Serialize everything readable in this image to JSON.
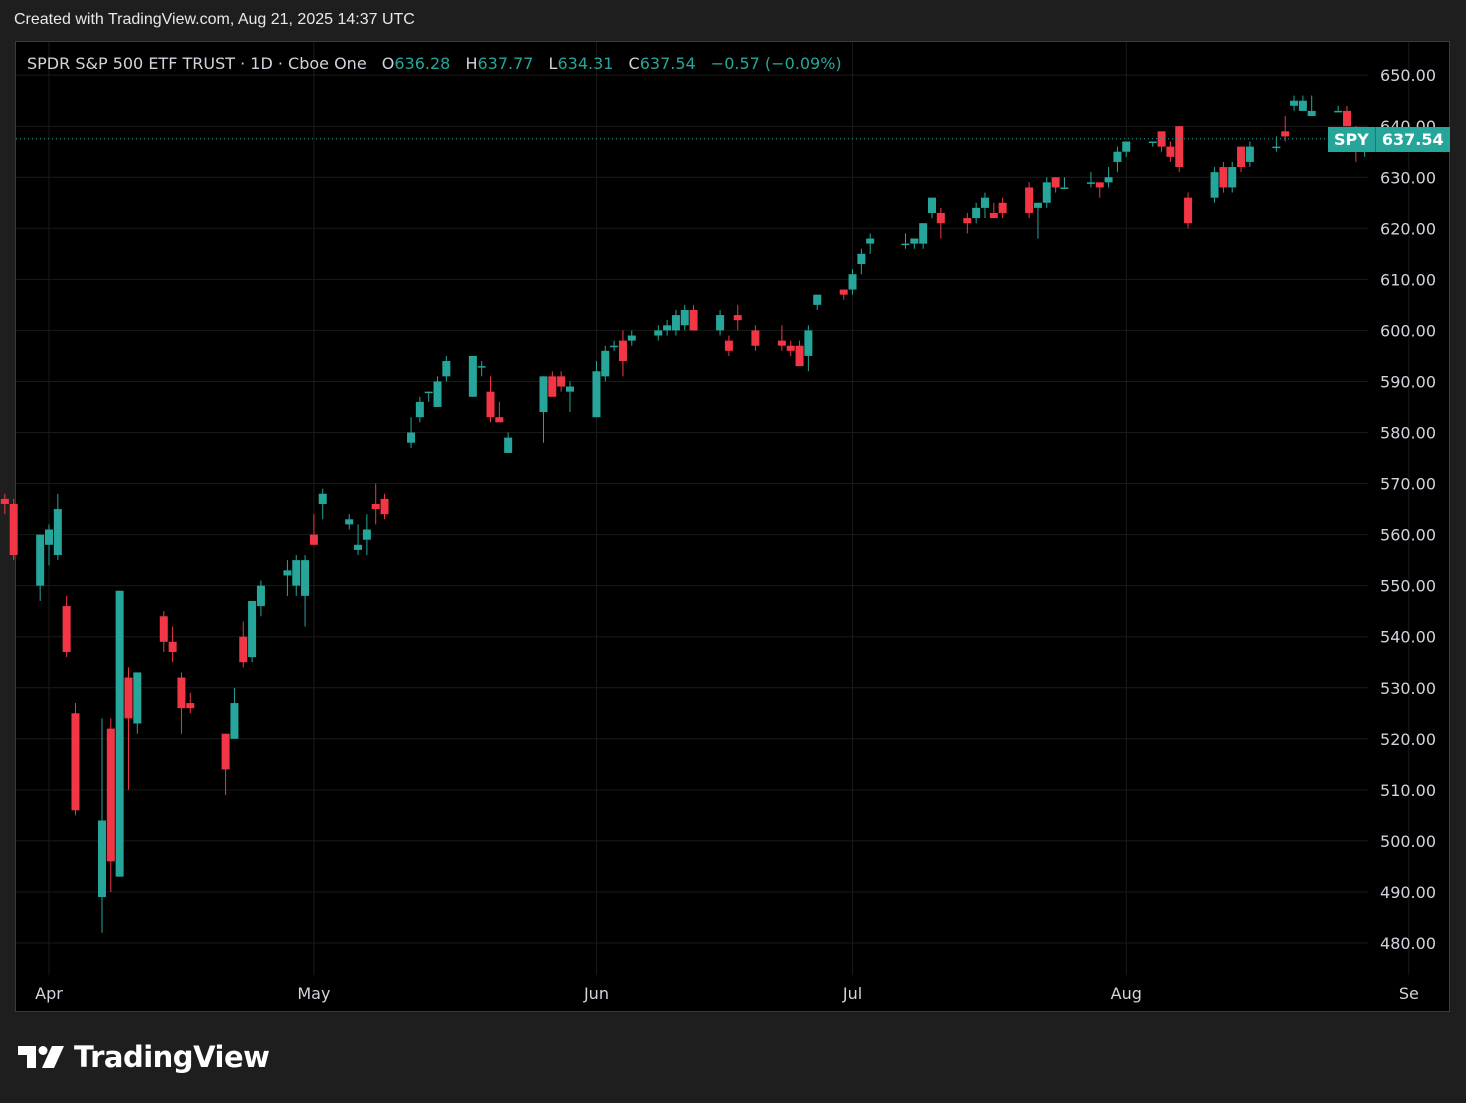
{
  "header": {
    "created_text": "Created with TradingView.com, Aug 21, 2025 14:37 UTC"
  },
  "legend": {
    "title": "SPDR S&P 500 ETF TRUST · 1D · Cboe One",
    "open_label": "O",
    "open": "636.28",
    "high_label": "H",
    "high": "637.77",
    "low_label": "L",
    "low": "634.31",
    "close_label": "C",
    "close": "637.54",
    "change": "−0.57 (−0.09%)"
  },
  "price_tag": {
    "symbol": "SPY",
    "price": "637.54"
  },
  "footer": {
    "brand": "TradingView",
    "logo_icon": "tradingview-logo-icon"
  },
  "colors": {
    "up": "#26a69a",
    "down": "#f23645",
    "background": "#000000",
    "grid": "#1a1a1a"
  },
  "chart_data": {
    "type": "candlestick",
    "series_name": "SPY",
    "ylim": [
      475,
      655
    ],
    "y_ticks": [
      "480.00",
      "490.00",
      "500.00",
      "510.00",
      "520.00",
      "530.00",
      "540.00",
      "550.00",
      "560.00",
      "570.00",
      "580.00",
      "590.00",
      "600.00",
      "610.00",
      "620.00",
      "630.00",
      "640.00",
      "650.00"
    ],
    "x_ticks": [
      {
        "label": "Apr",
        "date": "2025-04-01"
      },
      {
        "label": "May",
        "date": "2025-05-01"
      },
      {
        "label": "Jun",
        "date": "2025-06-02"
      },
      {
        "label": "Jul",
        "date": "2025-07-01"
      },
      {
        "label": "Aug",
        "date": "2025-08-01"
      },
      {
        "label": "Se",
        "date": "2025-09-02"
      }
    ],
    "last_price": 637.54,
    "candles": [
      {
        "d": "2025-03-27",
        "o": 567,
        "h": 568,
        "l": 564,
        "c": 566
      },
      {
        "d": "2025-03-28",
        "o": 566,
        "h": 567,
        "l": 555,
        "c": 556
      },
      {
        "d": "2025-03-31",
        "o": 550,
        "h": 560,
        "l": 547,
        "c": 560
      },
      {
        "d": "2025-04-01",
        "o": 558,
        "h": 562,
        "l": 554,
        "c": 561
      },
      {
        "d": "2025-04-02",
        "o": 556,
        "h": 568,
        "l": 555,
        "c": 565
      },
      {
        "d": "2025-04-03",
        "o": 546,
        "h": 548,
        "l": 536,
        "c": 537
      },
      {
        "d": "2025-04-04",
        "o": 525,
        "h": 527,
        "l": 505,
        "c": 506
      },
      {
        "d": "2025-04-07",
        "o": 489,
        "h": 524,
        "l": 482,
        "c": 504
      },
      {
        "d": "2025-04-08",
        "o": 522,
        "h": 524,
        "l": 490,
        "c": 496
      },
      {
        "d": "2025-04-09",
        "o": 493,
        "h": 549,
        "l": 493,
        "c": 549
      },
      {
        "d": "2025-04-10",
        "o": 532,
        "h": 534,
        "l": 510,
        "c": 524
      },
      {
        "d": "2025-04-11",
        "o": 523,
        "h": 533,
        "l": 521,
        "c": 533
      },
      {
        "d": "2025-04-14",
        "o": 544,
        "h": 545,
        "l": 537,
        "c": 539
      },
      {
        "d": "2025-04-15",
        "o": 539,
        "h": 542,
        "l": 535,
        "c": 537
      },
      {
        "d": "2025-04-16",
        "o": 532,
        "h": 533,
        "l": 521,
        "c": 526
      },
      {
        "d": "2025-04-17",
        "o": 527,
        "h": 529,
        "l": 525,
        "c": 526
      },
      {
        "d": "2025-04-21",
        "o": 521,
        "h": 521,
        "l": 509,
        "c": 514
      },
      {
        "d": "2025-04-22",
        "o": 520,
        "h": 530,
        "l": 520,
        "c": 527
      },
      {
        "d": "2025-04-23",
        "o": 540,
        "h": 543,
        "l": 534,
        "c": 535
      },
      {
        "d": "2025-04-24",
        "o": 536,
        "h": 547,
        "l": 535,
        "c": 547
      },
      {
        "d": "2025-04-25",
        "o": 546,
        "h": 551,
        "l": 544,
        "c": 550
      },
      {
        "d": "2025-04-28",
        "o": 552,
        "h": 555,
        "l": 548,
        "c": 553
      },
      {
        "d": "2025-04-29",
        "o": 550,
        "h": 556,
        "l": 548,
        "c": 555
      },
      {
        "d": "2025-04-30",
        "o": 548,
        "h": 556,
        "l": 542,
        "c": 555
      },
      {
        "d": "2025-05-01",
        "o": 560,
        "h": 564,
        "l": 558,
        "c": 558
      },
      {
        "d": "2025-05-02",
        "o": 566,
        "h": 569,
        "l": 563,
        "c": 568
      },
      {
        "d": "2025-05-05",
        "o": 562,
        "h": 564,
        "l": 561,
        "c": 563
      },
      {
        "d": "2025-05-06",
        "o": 557,
        "h": 562,
        "l": 556,
        "c": 558
      },
      {
        "d": "2025-05-07",
        "o": 559,
        "h": 564,
        "l": 556,
        "c": 561
      },
      {
        "d": "2025-05-08",
        "o": 566,
        "h": 570,
        "l": 562,
        "c": 565
      },
      {
        "d": "2025-05-09",
        "o": 567,
        "h": 568,
        "l": 563,
        "c": 564
      },
      {
        "d": "2025-05-12",
        "o": 578,
        "h": 583,
        "l": 577,
        "c": 580
      },
      {
        "d": "2025-05-13",
        "o": 583,
        "h": 587,
        "l": 582,
        "c": 586
      },
      {
        "d": "2025-05-14",
        "o": 588,
        "h": 588,
        "l": 586,
        "c": 588
      },
      {
        "d": "2025-05-15",
        "o": 585,
        "h": 591,
        "l": 585,
        "c": 590
      },
      {
        "d": "2025-05-16",
        "o": 591,
        "h": 595,
        "l": 590,
        "c": 594
      },
      {
        "d": "2025-05-19",
        "o": 587,
        "h": 595,
        "l": 587,
        "c": 595
      },
      {
        "d": "2025-05-20",
        "o": 593,
        "h": 594,
        "l": 591,
        "c": 593
      },
      {
        "d": "2025-05-21",
        "o": 588,
        "h": 591,
        "l": 582,
        "c": 583
      },
      {
        "d": "2025-05-22",
        "o": 583,
        "h": 586,
        "l": 582,
        "c": 582
      },
      {
        "d": "2025-05-23",
        "o": 576,
        "h": 580,
        "l": 576,
        "c": 579
      },
      {
        "d": "2025-05-27",
        "o": 584,
        "h": 591,
        "l": 578,
        "c": 591
      },
      {
        "d": "2025-05-28",
        "o": 591,
        "h": 592,
        "l": 588,
        "c": 587
      },
      {
        "d": "2025-05-29",
        "o": 591,
        "h": 592,
        "l": 588,
        "c": 589
      },
      {
        "d": "2025-05-30",
        "o": 588,
        "h": 590,
        "l": 584,
        "c": 589
      },
      {
        "d": "2025-06-02",
        "o": 583,
        "h": 594,
        "l": 583,
        "c": 592
      },
      {
        "d": "2025-06-03",
        "o": 591,
        "h": 597,
        "l": 590,
        "c": 596
      },
      {
        "d": "2025-06-04",
        "o": 597,
        "h": 598,
        "l": 596,
        "c": 597
      },
      {
        "d": "2025-06-05",
        "o": 598,
        "h": 600,
        "l": 591,
        "c": 594
      },
      {
        "d": "2025-06-06",
        "o": 598,
        "h": 600,
        "l": 597,
        "c": 599
      },
      {
        "d": "2025-06-09",
        "o": 599,
        "h": 601,
        "l": 598,
        "c": 600
      },
      {
        "d": "2025-06-10",
        "o": 600,
        "h": 602,
        "l": 599,
        "c": 601
      },
      {
        "d": "2025-06-11",
        "o": 600,
        "h": 604,
        "l": 599,
        "c": 603
      },
      {
        "d": "2025-06-12",
        "o": 601,
        "h": 605,
        "l": 600,
        "c": 604
      },
      {
        "d": "2025-06-13",
        "o": 604,
        "h": 605,
        "l": 600,
        "c": 600
      },
      {
        "d": "2025-06-16",
        "o": 600,
        "h": 604,
        "l": 599,
        "c": 603
      },
      {
        "d": "2025-06-17",
        "o": 598,
        "h": 599,
        "l": 595,
        "c": 596
      },
      {
        "d": "2025-06-18",
        "o": 603,
        "h": 605,
        "l": 600,
        "c": 602
      },
      {
        "d": "2025-06-20",
        "o": 600,
        "h": 601,
        "l": 596,
        "c": 597
      },
      {
        "d": "2025-06-23",
        "o": 598,
        "h": 601,
        "l": 596,
        "c": 597
      },
      {
        "d": "2025-06-24",
        "o": 597,
        "h": 598,
        "l": 595,
        "c": 596
      },
      {
        "d": "2025-06-25",
        "o": 597,
        "h": 598,
        "l": 593,
        "c": 593
      },
      {
        "d": "2025-06-26",
        "o": 595,
        "h": 601,
        "l": 592,
        "c": 600
      },
      {
        "d": "2025-06-27",
        "o": 605,
        "h": 607,
        "l": 604,
        "c": 607
      },
      {
        "d": "2025-06-30",
        "o": 608,
        "h": 608,
        "l": 606,
        "c": 607
      },
      {
        "d": "2025-07-01",
        "o": 608,
        "h": 612,
        "l": 607,
        "c": 611
      },
      {
        "d": "2025-07-02",
        "o": 613,
        "h": 616,
        "l": 611,
        "c": 615
      },
      {
        "d": "2025-07-03",
        "o": 617,
        "h": 619,
        "l": 615,
        "c": 618
      },
      {
        "d": "2025-07-07",
        "o": 617,
        "h": 619,
        "l": 616,
        "c": 617
      },
      {
        "d": "2025-07-08",
        "o": 617,
        "h": 618,
        "l": 616,
        "c": 618
      },
      {
        "d": "2025-07-09",
        "o": 617,
        "h": 621,
        "l": 616,
        "c": 621
      },
      {
        "d": "2025-07-10",
        "o": 623,
        "h": 626,
        "l": 622,
        "c": 626
      },
      {
        "d": "2025-07-11",
        "o": 623,
        "h": 624,
        "l": 618,
        "c": 621
      },
      {
        "d": "2025-07-14",
        "o": 622,
        "h": 623,
        "l": 619,
        "c": 621
      },
      {
        "d": "2025-07-15",
        "o": 622,
        "h": 625,
        "l": 621,
        "c": 624
      },
      {
        "d": "2025-07-16",
        "o": 624,
        "h": 627,
        "l": 622,
        "c": 626
      },
      {
        "d": "2025-07-17",
        "o": 623,
        "h": 625,
        "l": 622,
        "c": 622
      },
      {
        "d": "2025-07-18",
        "o": 625,
        "h": 626,
        "l": 622,
        "c": 623
      },
      {
        "d": "2025-07-21",
        "o": 628,
        "h": 629,
        "l": 622,
        "c": 623
      },
      {
        "d": "2025-07-22",
        "o": 624,
        "h": 625,
        "l": 618,
        "c": 625
      },
      {
        "d": "2025-07-23",
        "o": 625,
        "h": 630,
        "l": 624,
        "c": 629
      },
      {
        "d": "2025-07-24",
        "o": 630,
        "h": 630,
        "l": 627,
        "c": 628
      },
      {
        "d": "2025-07-25",
        "o": 628,
        "h": 630,
        "l": 628,
        "c": 628
      },
      {
        "d": "2025-07-28",
        "o": 629,
        "h": 631,
        "l": 628,
        "c": 629
      },
      {
        "d": "2025-07-29",
        "o": 629,
        "h": 629,
        "l": 626,
        "c": 628
      },
      {
        "d": "2025-07-30",
        "o": 629,
        "h": 632,
        "l": 628,
        "c": 630
      },
      {
        "d": "2025-07-31",
        "o": 633,
        "h": 636,
        "l": 631,
        "c": 635
      },
      {
        "d": "2025-08-01",
        "o": 635,
        "h": 637,
        "l": 634,
        "c": 637
      },
      {
        "d": "2025-08-04",
        "o": 637,
        "h": 637,
        "l": 636,
        "c": 637
      },
      {
        "d": "2025-08-05",
        "o": 639,
        "h": 639,
        "l": 635,
        "c": 636
      },
      {
        "d": "2025-08-06",
        "o": 636,
        "h": 637,
        "l": 633,
        "c": 634
      },
      {
        "d": "2025-08-07",
        "o": 640,
        "h": 640,
        "l": 631,
        "c": 632
      },
      {
        "d": "2025-08-08",
        "o": 626,
        "h": 627,
        "l": 620,
        "c": 621
      },
      {
        "d": "2025-08-11",
        "o": 626,
        "h": 632,
        "l": 625,
        "c": 631
      },
      {
        "d": "2025-08-12",
        "o": 632,
        "h": 633,
        "l": 627,
        "c": 628
      },
      {
        "d": "2025-08-13",
        "o": 628,
        "h": 633,
        "l": 627,
        "c": 632
      },
      {
        "d": "2025-08-14",
        "o": 636,
        "h": 636,
        "l": 631,
        "c": 632
      },
      {
        "d": "2025-08-15",
        "o": 633,
        "h": 637,
        "l": 632,
        "c": 636
      },
      {
        "d": "2025-08-18",
        "o": 636,
        "h": 638,
        "l": 635,
        "c": 636
      },
      {
        "d": "2025-08-19",
        "o": 639,
        "h": 642,
        "l": 637,
        "c": 638
      },
      {
        "d": "2025-08-20",
        "o": 644,
        "h": 646,
        "l": 643,
        "c": 645
      },
      {
        "d": "2025-08-21",
        "o": 643,
        "h": 646,
        "l": 643,
        "c": 645
      },
      {
        "d": "2025-08-22",
        "o": 642,
        "h": 646,
        "l": 642,
        "c": 643
      },
      {
        "d": "2025-08-25",
        "o": 643,
        "h": 644,
        "l": 643,
        "c": 643
      },
      {
        "d": "2025-08-26",
        "o": 643,
        "h": 644,
        "l": 640,
        "c": 640
      },
      {
        "d": "2025-08-27",
        "o": 639,
        "h": 640,
        "l": 633,
        "c": 638
      },
      {
        "d": "2025-08-28",
        "o": 636,
        "h": 638,
        "l": 634,
        "c": 637
      }
    ]
  }
}
